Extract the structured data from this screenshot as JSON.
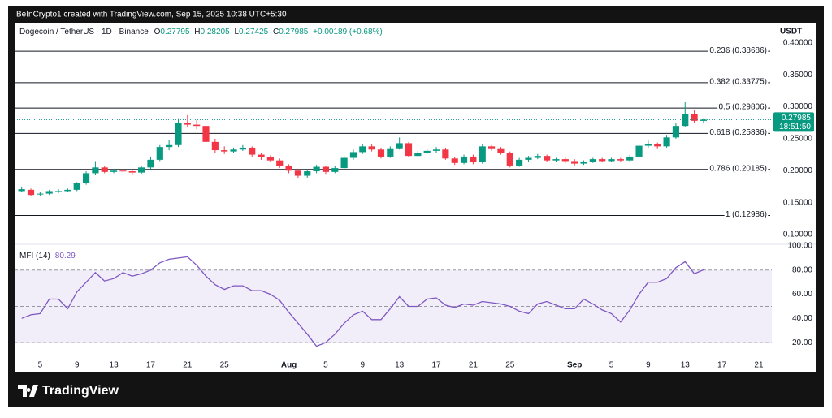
{
  "header": {
    "credit": "BeInCrypto1 created with TradingView.com, Sep 15, 2025 10:38 UTC+5:30",
    "symbol": "Dogecoin / TetherUS · 1D · Binance",
    "o": "O",
    "h": "H",
    "l": "L",
    "c": "C",
    "change": "+0.00189 (+0.68%)",
    "currency": "USDT"
  },
  "footer": {
    "logo": "TradingView"
  },
  "chart_data": [
    {
      "type": "candlestick",
      "up_color": "#089981",
      "down_color": "#f23645",
      "countdown": "18:51:50",
      "categories": [
        null,
        null,
        "5",
        null,
        null,
        null,
        "9",
        null,
        null,
        null,
        "13",
        null,
        null,
        null,
        "17",
        null,
        null,
        null,
        "21",
        null,
        null,
        null,
        "25",
        null,
        null,
        null,
        null,
        null,
        null,
        "Aug",
        null,
        null,
        null,
        "5",
        null,
        null,
        null,
        "9",
        null,
        null,
        null,
        "13",
        null,
        null,
        null,
        "17",
        null,
        null,
        null,
        "21",
        null,
        null,
        null,
        "25",
        null,
        null,
        null,
        null,
        null,
        null,
        "Sep",
        null,
        null,
        null,
        "5",
        null,
        null,
        null,
        "9",
        null,
        null,
        null,
        "13",
        null,
        null,
        null,
        "17",
        null,
        null,
        null,
        "21",
        null
      ],
      "open": [
        0.168,
        0.17,
        0.163,
        0.164,
        0.167,
        0.168,
        0.17,
        0.18,
        0.196,
        0.205,
        0.198,
        0.2,
        0.199,
        0.197,
        0.205,
        0.217,
        0.237,
        0.24,
        0.275,
        0.272,
        0.27,
        0.245,
        0.232,
        0.23,
        0.233,
        0.236,
        0.225,
        0.221,
        0.216,
        0.207,
        0.2,
        0.192,
        0.199,
        0.206,
        0.198,
        0.204,
        0.22,
        0.229,
        0.238,
        0.233,
        0.222,
        0.235,
        0.243,
        0.223,
        0.228,
        0.231,
        0.233,
        0.219,
        0.212,
        0.222,
        0.213,
        0.238,
        0.235,
        0.228,
        0.208,
        0.217,
        0.22,
        0.223,
        0.216,
        0.218,
        0.215,
        0.211,
        0.214,
        0.218,
        0.215,
        0.218,
        0.216,
        0.222,
        0.239,
        0.241,
        0.238,
        0.252,
        0.27,
        0.288,
        0.27795,
        null,
        null,
        null,
        null,
        null,
        null,
        null
      ],
      "high": [
        0.175,
        0.172,
        0.167,
        0.17,
        0.171,
        0.172,
        0.182,
        0.199,
        0.215,
        0.207,
        0.203,
        0.203,
        0.201,
        0.208,
        0.222,
        0.24,
        0.248,
        0.282,
        0.287,
        0.279,
        0.273,
        0.25,
        0.238,
        0.236,
        0.24,
        0.238,
        0.228,
        0.224,
        0.219,
        0.21,
        0.203,
        0.201,
        0.209,
        0.208,
        0.207,
        0.223,
        0.233,
        0.242,
        0.241,
        0.236,
        0.238,
        0.252,
        0.245,
        0.231,
        0.234,
        0.237,
        0.236,
        0.222,
        0.225,
        0.225,
        0.241,
        0.24,
        0.237,
        0.23,
        0.22,
        0.223,
        0.226,
        0.225,
        0.22,
        0.221,
        0.218,
        0.216,
        0.22,
        0.22,
        0.22,
        0.22,
        0.225,
        0.242,
        0.247,
        0.244,
        0.256,
        0.274,
        0.307,
        0.295,
        0.28205,
        null,
        null,
        null,
        null,
        null,
        null,
        null
      ],
      "low": [
        0.166,
        0.16,
        0.161,
        0.162,
        0.165,
        0.166,
        0.168,
        0.178,
        0.193,
        0.196,
        0.196,
        0.197,
        0.193,
        0.195,
        0.202,
        0.215,
        0.232,
        0.237,
        0.268,
        0.265,
        0.24,
        0.228,
        0.226,
        0.228,
        0.231,
        0.222,
        0.217,
        0.213,
        0.204,
        0.196,
        0.189,
        0.189,
        0.196,
        0.195,
        0.196,
        0.202,
        0.217,
        0.226,
        0.23,
        0.219,
        0.22,
        0.233,
        0.221,
        0.221,
        0.226,
        0.228,
        0.217,
        0.209,
        0.21,
        0.21,
        0.211,
        0.231,
        0.225,
        0.205,
        0.206,
        0.214,
        0.218,
        0.214,
        0.214,
        0.212,
        0.208,
        0.209,
        0.212,
        0.213,
        0.213,
        0.213,
        0.214,
        0.22,
        0.236,
        0.235,
        0.236,
        0.25,
        0.268,
        0.274,
        0.27425,
        null,
        null,
        null,
        null,
        null,
        null,
        null
      ],
      "close": [
        0.171,
        0.162,
        0.164,
        0.168,
        0.168,
        0.17,
        0.18,
        0.196,
        0.205,
        0.198,
        0.2,
        0.199,
        0.197,
        0.205,
        0.217,
        0.237,
        0.24,
        0.275,
        0.272,
        0.27,
        0.245,
        0.232,
        0.23,
        0.233,
        0.236,
        0.225,
        0.221,
        0.216,
        0.207,
        0.2,
        0.192,
        0.199,
        0.206,
        0.198,
        0.204,
        0.22,
        0.229,
        0.238,
        0.233,
        0.222,
        0.235,
        0.243,
        0.223,
        0.228,
        0.231,
        0.233,
        0.219,
        0.212,
        0.222,
        0.213,
        0.238,
        0.235,
        0.228,
        0.208,
        0.217,
        0.22,
        0.223,
        0.216,
        0.218,
        0.215,
        0.211,
        0.214,
        0.218,
        0.215,
        0.218,
        0.216,
        0.222,
        0.239,
        0.241,
        0.238,
        0.252,
        0.27,
        0.288,
        0.278,
        0.27985,
        null,
        null,
        null,
        null,
        null,
        null,
        null
      ],
      "ylim": [
        0.086,
        0.429
      ],
      "yticks": [
        {
          "value": 0.4,
          "label": "0.40000"
        },
        {
          "value": 0.35,
          "label": "0.35000"
        },
        {
          "value": 0.3,
          "label": "0.30000"
        },
        {
          "value": 0.25,
          "label": "0.25000"
        },
        {
          "value": 0.2,
          "label": "0.20000"
        },
        {
          "value": 0.15,
          "label": "0.15000"
        },
        {
          "value": 0.1,
          "label": "0.10000"
        }
      ],
      "fib_levels": [
        {
          "value": 0.38686,
          "label": "0.236 (0.38686)"
        },
        {
          "value": 0.33775,
          "label": "0.382 (0.33775)"
        },
        {
          "value": 0.29806,
          "label": "0.5 (0.29806)"
        },
        {
          "value": 0.25836,
          "label": "0.618 (0.25836)"
        },
        {
          "value": 0.20185,
          "label": "0.786 (0.20185)"
        },
        {
          "value": 0.12986,
          "label": "1 (0.12986)"
        }
      ],
      "fib_color": "#131722"
    },
    {
      "type": "line",
      "title": "MFI (14)",
      "color": "#7e57c2",
      "values": [
        40,
        43,
        44,
        56,
        56,
        48,
        62,
        70,
        78,
        71,
        73,
        78,
        75,
        77,
        80,
        86,
        89,
        90,
        91,
        84,
        75,
        68,
        64,
        67,
        67,
        63,
        63,
        60,
        55,
        45,
        36,
        27,
        17,
        20,
        27,
        36,
        43,
        46,
        39,
        39,
        48,
        58,
        50,
        50,
        56,
        57,
        51,
        49,
        52,
        51,
        54,
        53,
        52,
        50,
        46,
        44,
        52,
        54,
        51,
        48,
        48,
        56,
        52,
        47,
        44,
        37,
        47,
        60,
        70,
        70,
        73,
        82,
        87,
        77,
        80.29,
        null,
        null,
        null,
        null,
        null,
        null,
        null
      ],
      "ylim": [
        8,
        100
      ],
      "yticks": [
        {
          "value": 100,
          "label": "100.00"
        },
        {
          "value": 80,
          "label": "80.00"
        },
        {
          "value": 60,
          "label": "60.00"
        },
        {
          "value": 40,
          "label": "40.00"
        },
        {
          "value": 20,
          "label": "20.00"
        }
      ],
      "bands": [
        80,
        50,
        20
      ],
      "band_color": "#7e57c2"
    }
  ]
}
